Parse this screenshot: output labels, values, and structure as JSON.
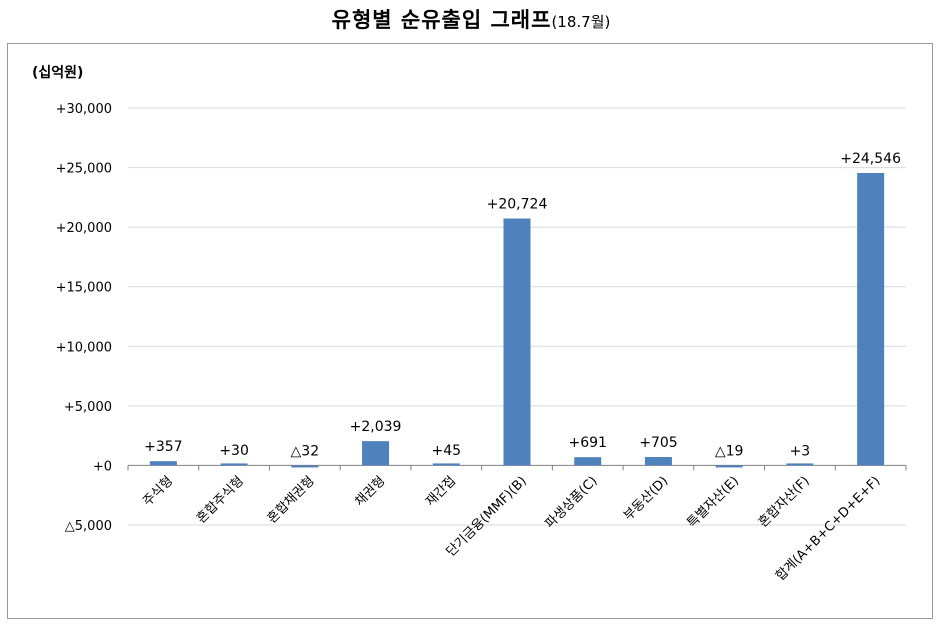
{
  "header": {
    "title": "유형별 순유출입 그래프",
    "period": "(18.7월)"
  },
  "colors": {
    "bar": "#4F81BD",
    "grid": "#D9D9D9",
    "axis": "#808080"
  },
  "chart_data": {
    "type": "bar",
    "title": "유형별 순유출입 그래프(18.7월)",
    "unit_label": "(십억원)",
    "categories": [
      "주식형",
      "혼합주식형",
      "혼합채권형",
      "채권형",
      "재간접",
      "단기금융(MMF)(B)",
      "파생상품(C)",
      "부동산(D)",
      "특별자산(E)",
      "혼합자산(F)",
      "합계(A+B+C+D+E+F)"
    ],
    "values": [
      357,
      30,
      -32,
      2039,
      45,
      20724,
      691,
      705,
      -19,
      3,
      24546
    ],
    "value_labels": [
      "+357",
      "+30",
      "△32",
      "+2,039",
      "+45",
      "+20,724",
      "+691",
      "+705",
      "△19",
      "+3",
      "+24,546"
    ],
    "yticks": [
      30000,
      25000,
      20000,
      15000,
      10000,
      5000,
      0,
      -5000
    ],
    "ytick_labels": [
      "+30,000",
      "+25,000",
      "+20,000",
      "+15,000",
      "+10,000",
      "+5,000",
      "+0",
      "△5,000"
    ],
    "ylim": [
      -5000,
      30000
    ],
    "grid": true,
    "legend": "none"
  }
}
